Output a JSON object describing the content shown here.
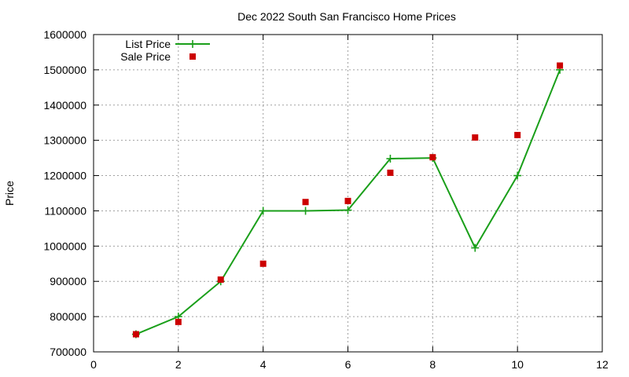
{
  "chart_data": {
    "type": "line",
    "title": "Dec 2022 South San Francisco Home Prices",
    "xlabel": "",
    "ylabel": "Price",
    "xlim": [
      0,
      12
    ],
    "ylim": [
      700000,
      1600000
    ],
    "x_ticks": [
      "0",
      "2",
      "4",
      "6",
      "8",
      "10",
      "12"
    ],
    "y_ticks": [
      "700000",
      "800000",
      "900000",
      "1000000",
      "1100000",
      "1200000",
      "1300000",
      "1400000",
      "1500000",
      "1600000"
    ],
    "grid": true,
    "legend_position": "top-left",
    "series": [
      {
        "name": "List Price",
        "style": "line-with-plus-markers",
        "color": "#1a9f1a",
        "x": [
          1,
          2,
          3,
          4,
          5,
          6,
          7,
          8,
          9,
          10,
          11
        ],
        "y": [
          750000,
          800000,
          900000,
          1100000,
          1100000,
          1102000,
          1248000,
          1250000,
          995000,
          1200000,
          1500000
        ]
      },
      {
        "name": "Sale Price",
        "style": "square-markers",
        "color": "#cc0000",
        "x": [
          1,
          2,
          3,
          4,
          5,
          6,
          7,
          8,
          9,
          10,
          11
        ],
        "y": [
          750000,
          785000,
          905000,
          950000,
          1125000,
          1128000,
          1208000,
          1252000,
          1308000,
          1315000,
          1512000
        ]
      }
    ]
  }
}
